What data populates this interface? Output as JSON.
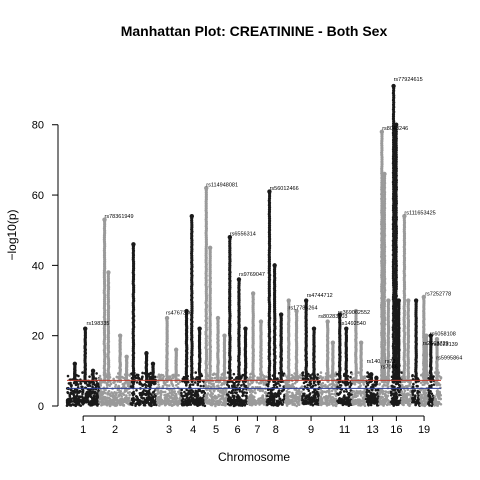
{
  "chart_data": {
    "type": "scatter",
    "subtype": "manhattan",
    "title": "Manhattan Plot: CREATININE - Both Sex",
    "xlabel": "Chromosome",
    "ylabel": "−log10(p)",
    "ylim": [
      0,
      95
    ],
    "yticks": [
      0,
      20,
      40,
      60,
      80
    ],
    "grid": false,
    "legend": "none",
    "colors": {
      "odd": "#1a1a1a",
      "even": "#9a9a9a",
      "significance_line": "#c0392b",
      "suggestive_line": "#2c3e99"
    },
    "thresholds": {
      "genome_wide": 7.3,
      "suggestive": 5
    },
    "chromosomes": [
      {
        "chr": "1",
        "label": "1",
        "start": 0,
        "end": 248,
        "peaks": [
          {
            "pos": 140,
            "y": 22
          },
          {
            "pos": 60,
            "y": 12
          },
          {
            "pos": 200,
            "y": 10
          }
        ]
      },
      {
        "chr": "2",
        "label": "2",
        "start": 248,
        "end": 490,
        "peaks": [
          {
            "pos": 40,
            "y": 53
          },
          {
            "pos": 70,
            "y": 38
          },
          {
            "pos": 160,
            "y": 20
          },
          {
            "pos": 210,
            "y": 14
          }
        ]
      },
      {
        "chr": "3",
        "label": "",
        "start": 490,
        "end": 688,
        "peaks": [
          {
            "pos": 20,
            "y": 46
          },
          {
            "pos": 120,
            "y": 15
          },
          {
            "pos": 170,
            "y": 12
          }
        ]
      },
      {
        "chr": "4",
        "label": "3",
        "start": 688,
        "end": 878,
        "peaks": [
          {
            "pos": 80,
            "y": 25
          },
          {
            "pos": 150,
            "y": 16
          }
        ]
      },
      {
        "chr": "5",
        "label": "4",
        "start": 878,
        "end": 1059,
        "peaks": [
          {
            "pos": 40,
            "y": 27
          },
          {
            "pos": 80,
            "y": 54
          },
          {
            "pos": 140,
            "y": 22
          }
        ]
      },
      {
        "chr": "6",
        "label": "5",
        "start": 1059,
        "end": 1230,
        "peaks": [
          {
            "pos": 10,
            "y": 62
          },
          {
            "pos": 40,
            "y": 45
          },
          {
            "pos": 100,
            "y": 25
          },
          {
            "pos": 150,
            "y": 20
          }
        ]
      },
      {
        "chr": "7",
        "label": "6",
        "start": 1230,
        "end": 1389,
        "peaks": [
          {
            "pos": 20,
            "y": 48
          },
          {
            "pos": 90,
            "y": 36
          },
          {
            "pos": 140,
            "y": 22
          }
        ]
      },
      {
        "chr": "8",
        "label": "7",
        "start": 1389,
        "end": 1534,
        "peaks": [
          {
            "pos": 40,
            "y": 32
          },
          {
            "pos": 100,
            "y": 24
          }
        ]
      },
      {
        "chr": "9",
        "label": "8",
        "start": 1534,
        "end": 1672,
        "peaks": [
          {
            "pos": 20,
            "y": 61
          },
          {
            "pos": 60,
            "y": 40
          },
          {
            "pos": 110,
            "y": 26
          }
        ]
      },
      {
        "chr": "10",
        "label": "",
        "start": 1672,
        "end": 1806,
        "peaks": [
          {
            "pos": 30,
            "y": 30
          },
          {
            "pos": 90,
            "y": 27
          }
        ]
      },
      {
        "chr": "11",
        "label": "9",
        "start": 1806,
        "end": 1941,
        "peaks": [
          {
            "pos": 30,
            "y": 30
          },
          {
            "pos": 90,
            "y": 22
          }
        ]
      },
      {
        "chr": "12",
        "label": "",
        "start": 1941,
        "end": 2074,
        "peaks": [
          {
            "pos": 60,
            "y": 24
          },
          {
            "pos": 100,
            "y": 18
          }
        ]
      },
      {
        "chr": "13",
        "label": "11",
        "start": 2074,
        "end": 2188,
        "peaks": [
          {
            "pos": 20,
            "y": 26
          },
          {
            "pos": 70,
            "y": 22
          }
        ]
      },
      {
        "chr": "14",
        "label": "",
        "start": 2188,
        "end": 2295,
        "peaks": [
          {
            "pos": 30,
            "y": 27
          },
          {
            "pos": 70,
            "y": 18
          }
        ]
      },
      {
        "chr": "15",
        "label": "13",
        "start": 2295,
        "end": 2397,
        "peaks": [
          {
            "pos": 40,
            "y": 9
          },
          {
            "pos": 80,
            "y": 8
          }
        ]
      },
      {
        "chr": "16",
        "label": "",
        "start": 2397,
        "end": 2487,
        "peaks": [
          {
            "pos": 20,
            "y": 78
          },
          {
            "pos": 40,
            "y": 66
          },
          {
            "pos": 70,
            "y": 30
          }
        ]
      },
      {
        "chr": "17",
        "label": "16",
        "start": 2487,
        "end": 2570,
        "peaks": [
          {
            "pos": 20,
            "y": 91
          },
          {
            "pos": 40,
            "y": 80
          },
          {
            "pos": 60,
            "y": 30
          }
        ]
      },
      {
        "chr": "18",
        "label": "",
        "start": 2570,
        "end": 2650,
        "peaks": [
          {
            "pos": 20,
            "y": 54
          },
          {
            "pos": 50,
            "y": 30
          }
        ]
      },
      {
        "chr": "19",
        "label": "",
        "start": 2650,
        "end": 2709,
        "peaks": [
          {
            "pos": 30,
            "y": 30
          }
        ]
      },
      {
        "chr": "20",
        "label": "19",
        "start": 2709,
        "end": 2773,
        "peaks": [
          {
            "pos": 30,
            "y": 31
          },
          {
            "pos": 50,
            "y": 20
          }
        ]
      },
      {
        "chr": "21",
        "label": "",
        "start": 2773,
        "end": 2820,
        "peaks": [
          {
            "pos": 20,
            "y": 20
          }
        ]
      },
      {
        "chr": "22",
        "label": "",
        "start": 2820,
        "end": 2871,
        "peaks": [
          {
            "pos": 20,
            "y": 19
          }
        ]
      }
    ],
    "annotations": [
      {
        "text": "rs77924615",
        "x": 2507,
        "y": 92.5
      },
      {
        "text": "rs8043246",
        "x": 2420,
        "y": 78.5
      },
      {
        "text": "rs114948081",
        "x": 1069,
        "y": 62.5
      },
      {
        "text": "rs56012466",
        "x": 1555,
        "y": 61.5
      },
      {
        "text": "rs111653425",
        "x": 2590,
        "y": 54.5
      },
      {
        "text": "rs78361949",
        "x": 288,
        "y": 53.5
      },
      {
        "text": "rs6556314",
        "x": 1250,
        "y": 48.5
      },
      {
        "text": "rs9769047",
        "x": 1320,
        "y": 37
      },
      {
        "text": "rs4744712",
        "x": 1840,
        "y": 31
      },
      {
        "text": "rs7252778",
        "x": 2750,
        "y": 31.5
      },
      {
        "text": "rs17786264",
        "x": 1700,
        "y": 27.5
      },
      {
        "text": "rs4767336",
        "x": 760,
        "y": 26
      },
      {
        "text": "rs369062552",
        "x": 2080,
        "y": 26.2
      },
      {
        "text": "rs80283103",
        "x": 1930,
        "y": 25
      },
      {
        "text": "rs1492540",
        "x": 2095,
        "y": 23
      },
      {
        "text": "rs198335",
        "x": 150,
        "y": 23
      },
      {
        "text": "rs6058108",
        "x": 2785,
        "y": 20
      },
      {
        "text": "rs2663729",
        "x": 2730,
        "y": 17.3
      },
      {
        "text": "rs8023139",
        "x": 2800,
        "y": 17
      },
      {
        "text": "rs5995864",
        "x": 2835,
        "y": 13.2
      },
      {
        "text": "rs140",
        "x": 2300,
        "y": 12.3
      },
      {
        "text": "rs79",
        "x": 2440,
        "y": 12.3
      },
      {
        "text": "rs7066",
        "x": 2410,
        "y": 10.7
      }
    ]
  }
}
